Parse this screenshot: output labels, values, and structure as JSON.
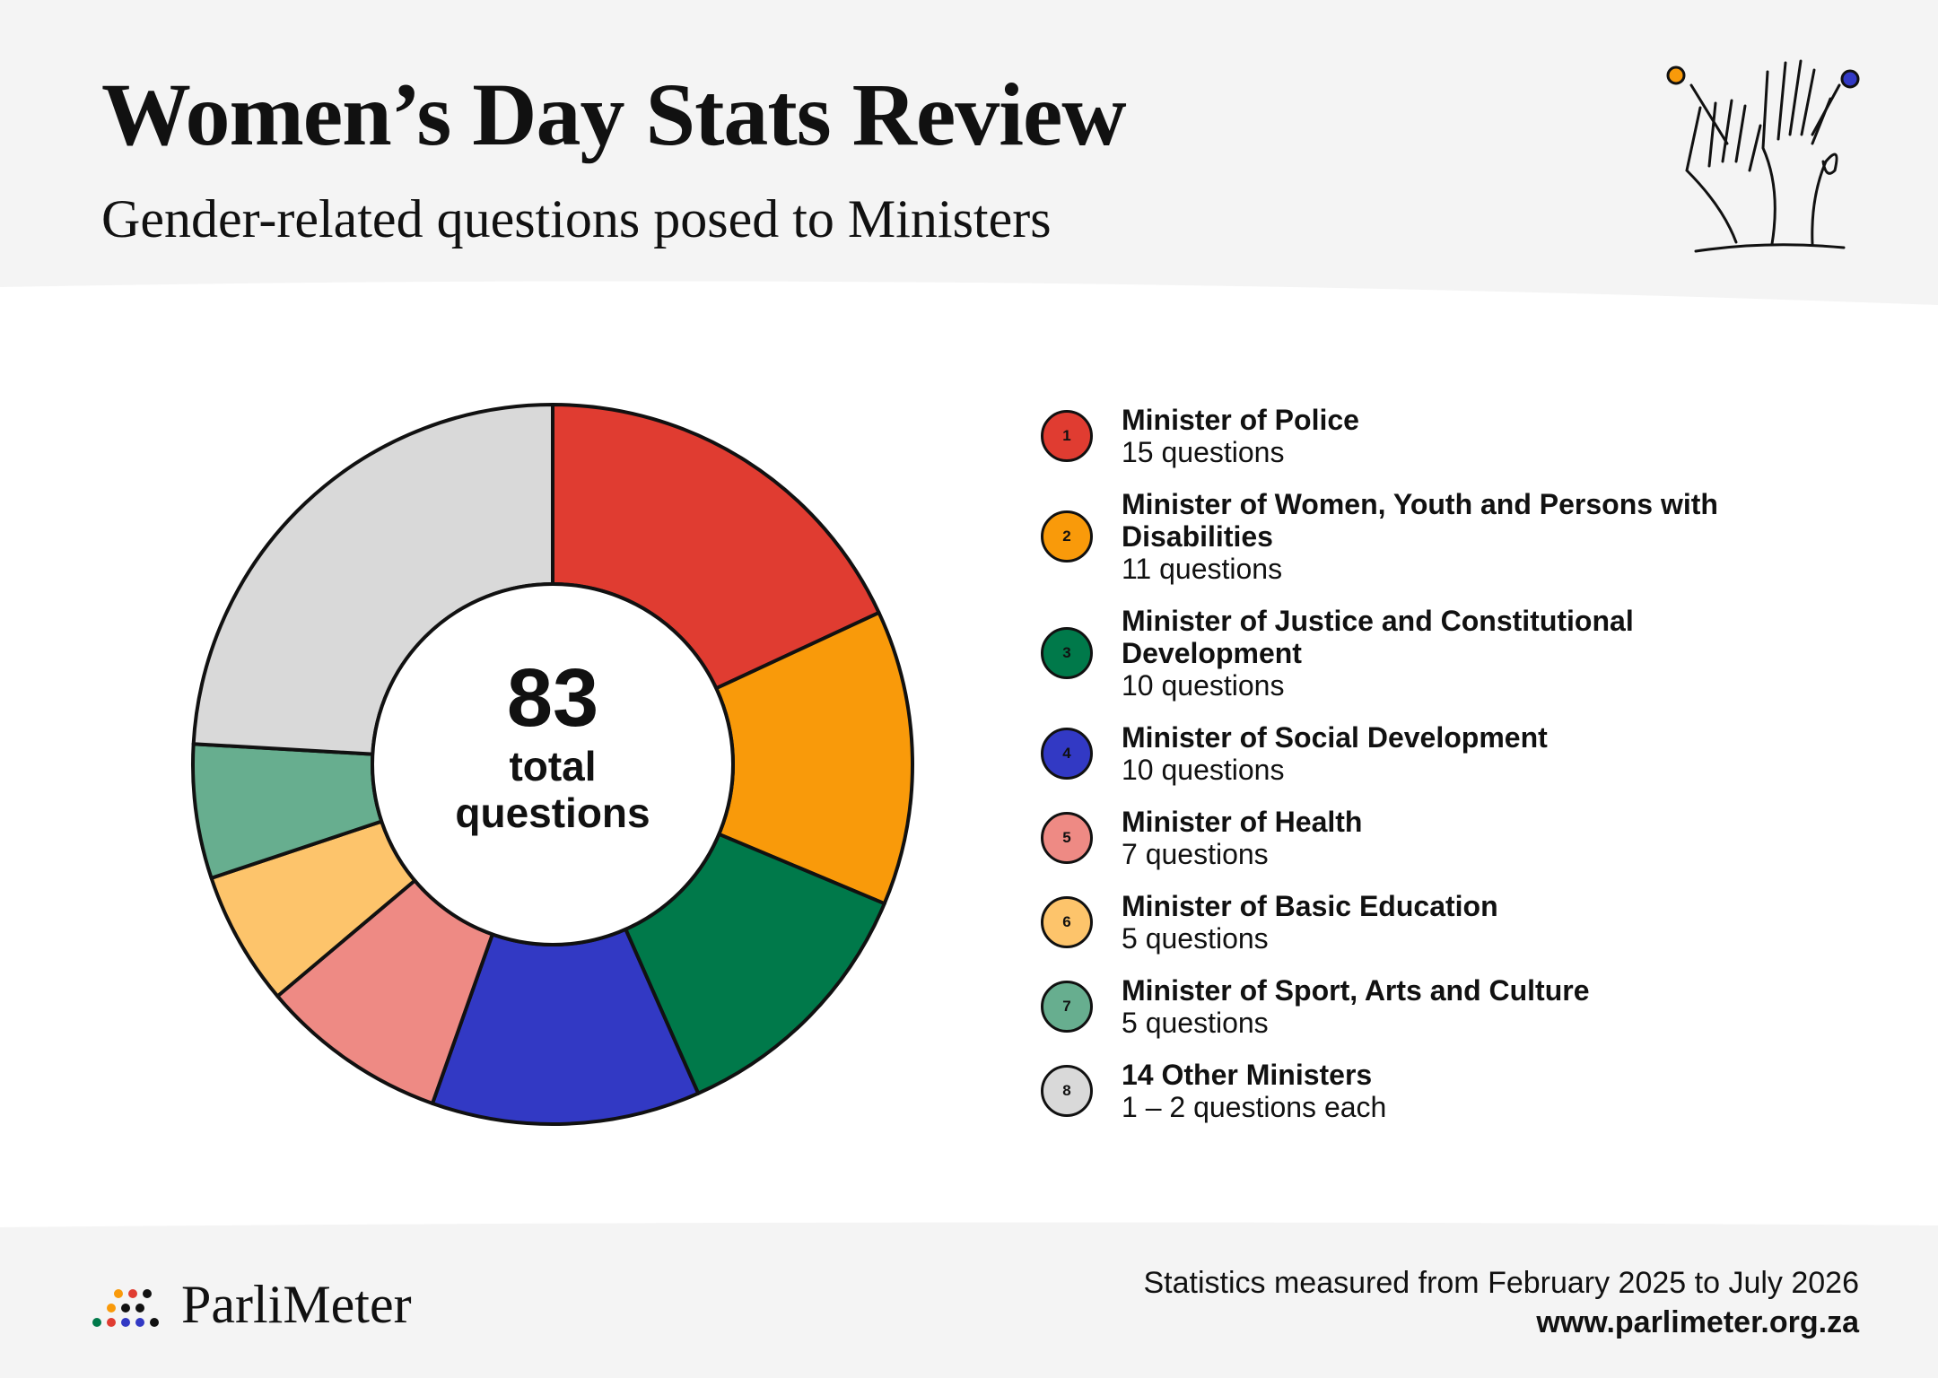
{
  "header": {
    "title_highlight": "Women’s Day",
    "title_rest": "Stats Review",
    "subtitle": "Gender-related questions posed to Ministers"
  },
  "chart_data": {
    "type": "donut",
    "categories": [
      "Minister of Police",
      "Minister of Women, Youth and Persons with Disabilities",
      "Minister of Justice and Constitutional Development",
      "Minister of Social Development",
      "Minister of Health",
      "Minister of Basic Education",
      "Minister of Sport, Arts and Culture",
      "14 Other Ministers"
    ],
    "values": [
      15,
      11,
      10,
      10,
      7,
      5,
      5,
      20
    ],
    "descriptions": [
      "15 questions",
      "11 questions",
      "10 questions",
      "10 questions",
      "7 questions",
      "5 questions",
      "5 questions",
      "1 – 2 questions each"
    ],
    "markers": [
      "1",
      "2",
      "3",
      "4",
      "5",
      "6",
      "7",
      "8"
    ],
    "colors": [
      "#e03c31",
      "#f99a0a",
      "#00794a",
      "#3239c4",
      "#ee8a84",
      "#fdc46b",
      "#67ae8f",
      "#d9d9d9"
    ],
    "center_value": 83,
    "center_label": "total questions"
  },
  "footer": {
    "brand": "ParliMeter",
    "period": "Statistics measured from February 2025 to July 2026",
    "url": "www.parlimeter.org.za"
  }
}
